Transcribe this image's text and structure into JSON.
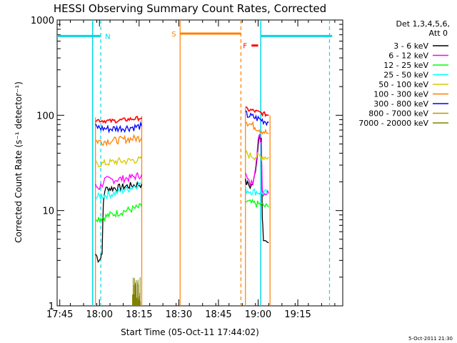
{
  "chart_data": {
    "type": "line",
    "title": "HESSI Observing Summary Count Rates, Corrected",
    "xlabel": "Start Time (05-Oct-11 17:44:02)",
    "ylabel": "Corrected Count Rate (s⁻¹ detector⁻¹)",
    "yscale": "log",
    "ylim": [
      1,
      1000
    ],
    "y_ticks": [
      "1",
      "10",
      "100",
      "1000"
    ],
    "xlim_minutes_of_day": [
      1064,
      1172
    ],
    "x_ticks": [
      {
        "label": "17:45",
        "t": 1065
      },
      {
        "label": "18:00",
        "t": 1080
      },
      {
        "label": "18:15",
        "t": 1095
      },
      {
        "label": "18:30",
        "t": 1110
      },
      {
        "label": "18:45",
        "t": 1125
      },
      {
        "label": "19:00",
        "t": 1140
      },
      {
        "label": "19:15",
        "t": 1155
      }
    ],
    "legend": {
      "position": "top-right",
      "heading": [
        "Det 1,3,4,5,6,",
        "Att 0"
      ]
    },
    "series": [
      {
        "name": "3 - 6 keV",
        "color": "#000000",
        "segments": [
          [
            [
              1078.5,
              3.5
            ],
            [
              1079.5,
              3.1
            ],
            [
              1080.5,
              3.2
            ],
            [
              1081.0,
              3.8
            ],
            [
              1081.5,
              12
            ],
            [
              1082.0,
              16.5
            ],
            [
              1083,
              17
            ],
            [
              1085,
              17.2
            ],
            [
              1088,
              17.5
            ],
            [
              1090,
              18
            ],
            [
              1093,
              18.5
            ],
            [
              1096,
              19
            ]
          ],
          [
            [
              1135.2,
              20
            ],
            [
              1136,
              19
            ],
            [
              1137,
              18
            ],
            [
              1138,
              19
            ],
            [
              1139,
              25
            ],
            [
              1140,
              50
            ],
            [
              1140.6,
              65
            ],
            [
              1141.2,
              58
            ],
            [
              1141.6,
              8
            ],
            [
              1142,
              5
            ],
            [
              1143,
              4.8
            ],
            [
              1144,
              4.6
            ]
          ]
        ]
      },
      {
        "name": "6 - 12 keV",
        "color": "#ff00ff",
        "segments": [
          [
            [
              1078.5,
              18
            ],
            [
              1080,
              17.5
            ],
            [
              1081,
              19
            ],
            [
              1082,
              21
            ],
            [
              1085,
              21
            ],
            [
              1088,
              21.5
            ],
            [
              1091,
              22
            ],
            [
              1094,
              23
            ],
            [
              1096,
              24
            ]
          ],
          [
            [
              1135.2,
              24
            ],
            [
              1136,
              21
            ],
            [
              1137,
              19
            ],
            [
              1138,
              20
            ],
            [
              1139,
              30
            ],
            [
              1140,
              55
            ],
            [
              1140.6,
              60
            ],
            [
              1141.2,
              52
            ],
            [
              1141.6,
              16
            ],
            [
              1142,
              15.5
            ],
            [
              1144,
              15.2
            ]
          ]
        ]
      },
      {
        "name": "12 - 25 keV",
        "color": "#00ff00",
        "segments": [
          [
            [
              1078.5,
              8.5
            ],
            [
              1080,
              8.3
            ],
            [
              1082,
              8.6
            ],
            [
              1084,
              9
            ],
            [
              1087,
              9.5
            ],
            [
              1090,
              10
            ],
            [
              1093,
              10.5
            ],
            [
              1096,
              11
            ]
          ],
          [
            [
              1135.2,
              12.5
            ],
            [
              1137,
              12
            ],
            [
              1139,
              11.8
            ],
            [
              1141,
              11.5
            ],
            [
              1143,
              11
            ],
            [
              1144,
              10.8
            ]
          ]
        ]
      },
      {
        "name": "25 - 50 keV",
        "color": "#00ffff",
        "segments": [
          [
            [
              1078.5,
              14
            ],
            [
              1080,
              14
            ],
            [
              1082,
              14.5
            ],
            [
              1085,
              15
            ],
            [
              1088,
              16
            ],
            [
              1091,
              17
            ],
            [
              1094,
              18.5
            ],
            [
              1096,
              19.5
            ]
          ],
          [
            [
              1135.2,
              16.5
            ],
            [
              1137,
              16
            ],
            [
              1139,
              15.8
            ],
            [
              1141,
              15.5
            ],
            [
              1143,
              15.3
            ],
            [
              1144,
              15.2
            ]
          ]
        ]
      },
      {
        "name": "50 - 100 keV",
        "color": "#d8c800",
        "segments": [
          [
            [
              1078.5,
              31
            ],
            [
              1081,
              31
            ],
            [
              1084,
              32
            ],
            [
              1087,
              33
            ],
            [
              1090,
              33
            ],
            [
              1093,
              34
            ],
            [
              1096,
              34
            ]
          ],
          [
            [
              1135.2,
              40
            ],
            [
              1137,
              38
            ],
            [
              1139,
              37
            ],
            [
              1141,
              37
            ],
            [
              1143,
              36.5
            ],
            [
              1144,
              36.5
            ]
          ]
        ]
      },
      {
        "name": "100 - 300 keV",
        "color": "#ff8000",
        "segments": [
          [
            [
              1078.5,
              54
            ],
            [
              1081,
              53
            ],
            [
              1084,
              54
            ],
            [
              1087,
              55
            ],
            [
              1090,
              56
            ],
            [
              1093,
              57
            ],
            [
              1096,
              58
            ]
          ],
          [
            [
              1135.2,
              90
            ],
            [
              1136,
              84
            ],
            [
              1138,
              78
            ],
            [
              1140,
              73
            ],
            [
              1142,
              68
            ],
            [
              1144,
              64
            ]
          ]
        ]
      },
      {
        "name": "300 - 800 keV",
        "color": "#0000ff",
        "segments": [
          [
            [
              1078.5,
              76
            ],
            [
              1081,
              73
            ],
            [
              1084,
              72
            ],
            [
              1087,
              73
            ],
            [
              1090,
              74
            ],
            [
              1093,
              75
            ],
            [
              1096,
              77
            ]
          ],
          [
            [
              1135.2,
              105
            ],
            [
              1136,
              100
            ],
            [
              1138,
              96
            ],
            [
              1140,
              92
            ],
            [
              1142,
              88
            ],
            [
              1144,
              84
            ]
          ]
        ]
      },
      {
        "name": "800 - 7000 keV",
        "color": "#c89000",
        "segments": [
          [
            [
              1079,
              1.2
            ],
            [
              1081,
              1.2
            ]
          ],
          [
            [
              1135,
              1
            ],
            [
              1144,
              1
            ]
          ]
        ]
      },
      {
        "name": "7000 - 20000 keV",
        "color": "#808000",
        "segments": [
          [
            [
              1092.5,
              2
            ],
            [
              1093,
              1.3
            ],
            [
              1093.5,
              2
            ],
            [
              1094,
              1.2
            ],
            [
              1094.5,
              2
            ],
            [
              1095,
              1.4
            ],
            [
              1095.5,
              2
            ]
          ]
        ]
      }
    ],
    "red_top": [
      [
        [
          1078.5,
          90
        ],
        [
          1081,
          88
        ],
        [
          1084,
          87
        ],
        [
          1087,
          88
        ],
        [
          1090,
          90
        ],
        [
          1093,
          92
        ],
        [
          1096,
          94
        ]
      ],
      [
        [
          1135.2,
          118
        ],
        [
          1136,
          115
        ],
        [
          1138,
          112
        ],
        [
          1140,
          108
        ],
        [
          1142,
          104
        ],
        [
          1144,
          100
        ]
      ]
    ],
    "data_box_start": 1078.5,
    "data_box_end": 1096,
    "flare_box_start": 1135.2,
    "flare_box_end": 1144.5,
    "saa_line_start": 1110.5,
    "saa_line_end": 1133.5,
    "markers": [
      {
        "label": "N",
        "t": 1080.5,
        "color": "#00d8e8",
        "bar": [
          1064,
          1080.5
        ],
        "bar_y": 680
      },
      {
        "label": "S",
        "t": 1110.5,
        "color": "#ff8000",
        "bar": [
          1110.5,
          1133.5
        ],
        "bar_y": 720
      },
      {
        "label": "F",
        "t": 1137.5,
        "color": "#ff0000",
        "bar": [
          1137.5,
          1140
        ],
        "bar_y": 540
      },
      {
        "label": "",
        "t": 1141,
        "color": "#00d8e8",
        "bar": [
          1141,
          1168
        ],
        "bar_y": 680
      }
    ],
    "footer_timestamp": "5-Oct-2011 21:30"
  }
}
